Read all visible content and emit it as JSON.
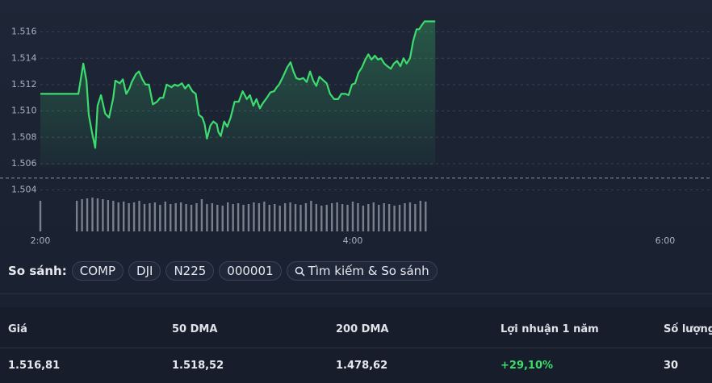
{
  "chart_data": {
    "type": "line",
    "x": [
      120,
      134.6,
      136.5,
      137.7,
      138.6,
      139.9,
      141.1,
      142,
      143.3,
      144.9,
      146.4,
      148,
      148.8,
      150.5,
      151.7,
      153,
      154.2,
      155.1,
      156.7,
      157.9,
      159.2,
      160.4,
      161.7,
      163.2,
      164.8,
      166,
      167.2,
      168.5,
      170.4,
      171.6,
      172.8,
      174.4,
      175.6,
      176.9,
      178.4,
      179.7,
      180.9,
      182.2,
      183.1,
      184,
      185.3,
      186.5,
      187.8,
      188.4,
      189.3,
      190.6,
      191.8,
      193.1,
      194.6,
      196.2,
      197.7,
      199.3,
      200.5,
      201.8,
      203,
      204.3,
      205.5,
      207,
      208.3,
      209.8,
      210.8,
      211.7,
      213.2,
      214.8,
      216.1,
      217.2,
      218.3,
      219.5,
      221,
      222.3,
      223.6,
      224.8,
      226,
      227.2,
      228.8,
      230,
      231.3,
      232.8,
      234.4,
      235.6,
      237.2,
      238.4,
      239.7,
      240.9,
      242.2,
      243.5,
      244.8,
      246,
      247.2,
      248.5,
      249.7,
      250.9,
      252.1,
      253.3,
      254.6,
      255.8,
      257,
      258.3,
      259.5,
      260.7,
      262,
      263.2,
      264.5,
      265.5,
      266.5,
      267.6,
      269.2,
      271.7
    ],
    "series": [
      {
        "color": "#3ddc6e",
        "values": [
          1.5113,
          1.5113,
          1.5136,
          1.5123,
          1.5097,
          1.5083,
          1.5072,
          1.5104,
          1.5112,
          1.5098,
          1.5095,
          1.511,
          1.5123,
          1.5121,
          1.5124,
          1.5113,
          1.5117,
          1.5122,
          1.5128,
          1.513,
          1.5124,
          1.512,
          1.512,
          1.5105,
          1.5107,
          1.511,
          1.511,
          1.512,
          1.5118,
          1.512,
          1.5119,
          1.5121,
          1.5117,
          1.512,
          1.5115,
          1.5113,
          1.5097,
          1.5095,
          1.509,
          1.5079,
          1.5089,
          1.5092,
          1.509,
          1.5084,
          1.5081,
          1.5092,
          1.5088,
          1.5095,
          1.5107,
          1.5107,
          1.5115,
          1.5109,
          1.5112,
          1.5104,
          1.5109,
          1.5102,
          1.5106,
          1.511,
          1.5114,
          1.5115,
          1.5118,
          1.512,
          1.5126,
          1.5133,
          1.5137,
          1.513,
          1.5125,
          1.5124,
          1.5125,
          1.5122,
          1.513,
          1.5123,
          1.5119,
          1.5126,
          1.5123,
          1.5121,
          1.5113,
          1.5109,
          1.5109,
          1.5113,
          1.5113,
          1.5112,
          1.512,
          1.5121,
          1.5129,
          1.5133,
          1.5139,
          1.5143,
          1.5139,
          1.5142,
          1.5139,
          1.514,
          1.5136,
          1.5134,
          1.5132,
          1.5136,
          1.5138,
          1.5134,
          1.514,
          1.5136,
          1.514,
          1.5153,
          1.5162,
          1.5162,
          1.5165,
          1.5168,
          1.5168,
          1.5168
        ]
      }
    ],
    "reference_line": 1.5049,
    "volume": {
      "color": "#9aa0aa",
      "x": [
        120,
        134,
        136,
        138,
        140,
        142,
        144,
        146,
        148,
        150,
        152,
        154,
        156,
        158,
        160,
        162,
        164,
        166,
        168,
        170,
        172,
        174,
        176,
        178,
        180,
        182,
        184,
        186,
        188,
        190,
        192,
        194,
        196,
        198,
        200,
        202,
        204,
        206,
        208,
        210,
        212,
        214,
        216,
        218,
        220,
        222,
        224,
        226,
        228,
        230,
        232,
        234,
        236,
        238,
        240,
        242,
        244,
        246,
        248,
        250,
        252,
        254,
        256,
        258,
        260,
        262,
        264,
        266,
        268
      ],
      "values": [
        38,
        38,
        40,
        41,
        42,
        41,
        40,
        39,
        38,
        36,
        37,
        35,
        36,
        38,
        34,
        35,
        36,
        33,
        37,
        34,
        35,
        36,
        34,
        33,
        35,
        40,
        34,
        35,
        33,
        32,
        36,
        34,
        35,
        33,
        34,
        36,
        35,
        37,
        33,
        34,
        32,
        35,
        36,
        34,
        33,
        35,
        38,
        34,
        32,
        33,
        35,
        36,
        34,
        33,
        37,
        35,
        32,
        34,
        36,
        33,
        35,
        34,
        32,
        33,
        35,
        36,
        34,
        38,
        37
      ],
      "lim": [
        0,
        50
      ]
    },
    "xlim": [
      120,
      378
    ],
    "xticks": [
      {
        "value": 120,
        "label": "2:00"
      },
      {
        "value": 240,
        "label": "4:00"
      },
      {
        "value": 360,
        "label": "6:00"
      }
    ],
    "ylim": [
      1.5032,
      1.5172
    ],
    "yticks": [
      1.504,
      1.506,
      1.508,
      {
        "value": 1.51,
        "label": "1.510"
      },
      1.512,
      1.514,
      1.516
    ],
    "grid": true
  },
  "compare": {
    "label": "So sánh:",
    "items": [
      "COMP",
      "DJI",
      "N225",
      "000001"
    ],
    "search": "Tìm kiếm & So sánh"
  },
  "table": {
    "headers": [
      "Giá",
      "50 DMA",
      "200 DMA",
      "Lợi nhuận 1 năm",
      "Số lượng"
    ],
    "rows": [
      [
        "1.516,81",
        "1.518,52",
        "1.478,62",
        "+29,10%",
        "30"
      ]
    ]
  }
}
